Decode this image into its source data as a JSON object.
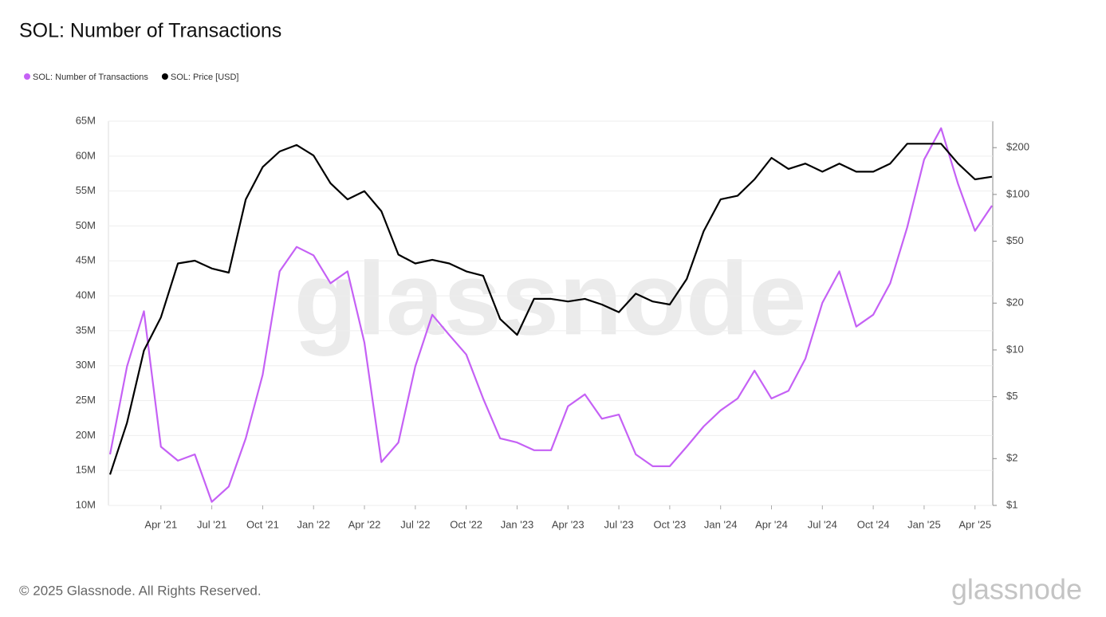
{
  "chart_data": {
    "type": "line",
    "title": "SOL: Number of Transactions",
    "watermark": "glassnode",
    "footer": "© 2025 Glassnode. All Rights Reserved.",
    "logo": "glassnode",
    "legend": "top-left",
    "grid": true,
    "y2log": true,
    "x": [
      "2021-01",
      "2021-02",
      "2021-03",
      "2021-04",
      "2021-05",
      "2021-06",
      "2021-07",
      "2021-08",
      "2021-09",
      "2021-10",
      "2021-11",
      "2021-12",
      "2022-01",
      "2022-02",
      "2022-03",
      "2022-04",
      "2022-05",
      "2022-06",
      "2022-07",
      "2022-08",
      "2022-09",
      "2022-10",
      "2022-11",
      "2022-12",
      "2023-01",
      "2023-02",
      "2023-03",
      "2023-04",
      "2023-05",
      "2023-06",
      "2023-07",
      "2023-08",
      "2023-09",
      "2023-10",
      "2023-11",
      "2023-12",
      "2024-01",
      "2024-02",
      "2024-03",
      "2024-04",
      "2024-05",
      "2024-06",
      "2024-07",
      "2024-08",
      "2024-09",
      "2024-10",
      "2024-11",
      "2024-12",
      "2025-01",
      "2025-02",
      "2025-03",
      "2025-04",
      "2025-05"
    ],
    "xlim": [
      "2021-01",
      "2025-05"
    ],
    "xticks": [
      {
        "value": "2021-04",
        "label": "Apr '21"
      },
      {
        "value": "2021-07",
        "label": "Jul '21"
      },
      {
        "value": "2021-10",
        "label": "Oct '21"
      },
      {
        "value": "2022-01",
        "label": "Jan '22"
      },
      {
        "value": "2022-04",
        "label": "Apr '22"
      },
      {
        "value": "2022-07",
        "label": "Jul '22"
      },
      {
        "value": "2022-10",
        "label": "Oct '22"
      },
      {
        "value": "2023-01",
        "label": "Jan '23"
      },
      {
        "value": "2023-04",
        "label": "Apr '23"
      },
      {
        "value": "2023-07",
        "label": "Jul '23"
      },
      {
        "value": "2023-10",
        "label": "Oct '23"
      },
      {
        "value": "2024-01",
        "label": "Jan '24"
      },
      {
        "value": "2024-04",
        "label": "Apr '24"
      },
      {
        "value": "2024-07",
        "label": "Jul '24"
      },
      {
        "value": "2024-10",
        "label": "Oct '24"
      },
      {
        "value": "2025-01",
        "label": "Jan '25"
      },
      {
        "value": "2025-04",
        "label": "Apr '25"
      }
    ],
    "ylim": [
      10000000,
      65000000
    ],
    "yticks": [
      {
        "value": 10000000,
        "label": "10M"
      },
      {
        "value": 15000000,
        "label": "15M"
      },
      {
        "value": 20000000,
        "label": "20M"
      },
      {
        "value": 25000000,
        "label": "25M"
      },
      {
        "value": 30000000,
        "label": "30M"
      },
      {
        "value": 35000000,
        "label": "35M"
      },
      {
        "value": 40000000,
        "label": "40M"
      },
      {
        "value": 45000000,
        "label": "45M"
      },
      {
        "value": 50000000,
        "label": "50M"
      },
      {
        "value": 55000000,
        "label": "55M"
      },
      {
        "value": 60000000,
        "label": "60M"
      },
      {
        "value": 65000000,
        "label": "65M"
      }
    ],
    "y2lim": [
      1,
      296
    ],
    "y2ticks": [
      {
        "value": 1,
        "label": "$1"
      },
      {
        "value": 2,
        "label": "$2"
      },
      {
        "value": 5,
        "label": "$5"
      },
      {
        "value": 10,
        "label": "$10"
      },
      {
        "value": 20,
        "label": "$20"
      },
      {
        "value": 50,
        "label": "$50"
      },
      {
        "value": 100,
        "label": "$100"
      },
      {
        "value": 200,
        "label": "$200"
      }
    ],
    "series": [
      {
        "name": "SOL: Number of Transactions",
        "color": "#c561f5",
        "values": [
          17300000,
          29900000,
          37800000,
          18400000,
          16400000,
          17300000,
          10500000,
          12700000,
          19600000,
          28700000,
          43500000,
          47000000,
          45800000,
          41800000,
          43500000,
          33300000,
          16200000,
          19000000,
          29900000,
          37300000,
          34400000,
          31600000,
          25300000,
          19600000,
          19000000,
          17900000,
          17900000,
          24200000,
          25900000,
          22400000,
          23000000,
          17300000,
          15600000,
          15600000,
          18400000,
          21300000,
          23600000,
          25300000,
          29300000,
          25300000,
          26400000,
          31000000,
          39000000,
          43500000,
          35600000,
          37300000,
          41800000,
          49800000,
          59500000,
          64000000,
          56000000,
          49300000,
          52900000
        ]
      },
      {
        "name": "SOL: Price [USD]",
        "color": "#000000",
        "axis": "y2",
        "values": [
          1.58,
          3.4,
          9.9,
          16.2,
          36,
          37.5,
          33.4,
          31.4,
          93,
          150,
          189,
          208,
          178,
          118,
          93,
          105,
          78,
          41,
          36,
          38,
          36,
          32,
          30,
          15.8,
          12.5,
          21.3,
          21.3,
          20.5,
          21.3,
          19.6,
          17.5,
          23,
          20.5,
          19.6,
          28.6,
          58,
          93,
          98,
          125,
          172,
          146,
          158,
          140,
          158,
          140,
          140,
          158,
          212,
          212,
          212,
          158,
          125,
          130
        ]
      }
    ]
  }
}
